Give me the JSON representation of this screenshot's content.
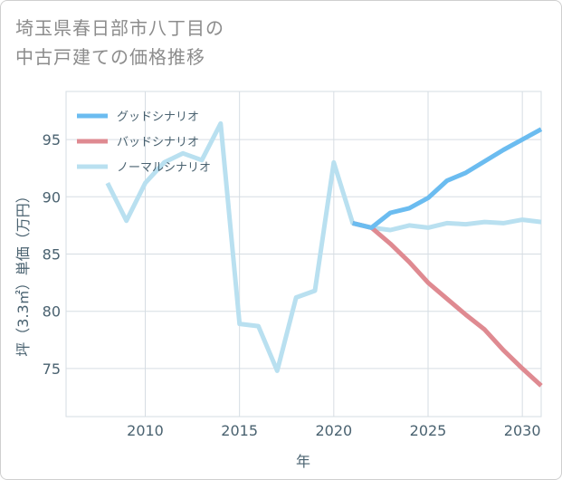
{
  "title_line1": "埼玉県春日部市八丁目の",
  "title_line2": "中古戸建ての価格推移",
  "chart_data": {
    "type": "line",
    "xlabel": "年",
    "ylabel": "坪（3.3㎡）単価（万円）",
    "xlim": [
      2005.8,
      2031
    ],
    "ylim": [
      70.8,
      99.2
    ],
    "xticks": [
      2010,
      2015,
      2020,
      2025,
      2030
    ],
    "yticks": [
      75,
      80,
      85,
      90,
      95
    ],
    "grid": true,
    "legend_position": "top-left",
    "series": [
      {
        "name": "グッドシナリオ",
        "color": "#6bbcf0",
        "x": [
          2021,
          2022,
          2023,
          2024,
          2025,
          2026,
          2027,
          2028,
          2029,
          2030,
          2031
        ],
        "values": [
          87.7,
          87.3,
          88.6,
          89.0,
          89.9,
          91.4,
          92.1,
          93.1,
          94.1,
          95.0,
          95.9
        ]
      },
      {
        "name": "バッドシナリオ",
        "color": "#df8a91",
        "x": [
          2021,
          2022,
          2023,
          2024,
          2025,
          2026,
          2027,
          2028,
          2029,
          2030,
          2031
        ],
        "values": [
          87.7,
          87.3,
          85.9,
          84.3,
          82.5,
          81.1,
          79.7,
          78.4,
          76.6,
          75.0,
          73.5
        ]
      },
      {
        "name": "ノーマルシナリオ",
        "color": "#b9e0f0",
        "x": [
          2008,
          2009,
          2010,
          2011,
          2012,
          2013,
          2014,
          2015,
          2016,
          2017,
          2018,
          2019,
          2020,
          2021,
          2022,
          2023,
          2024,
          2025,
          2026,
          2027,
          2028,
          2029,
          2030,
          2031
        ],
        "values": [
          91.2,
          87.9,
          91.2,
          93.0,
          93.8,
          93.2,
          96.4,
          78.9,
          78.7,
          74.8,
          81.2,
          81.8,
          93.0,
          87.7,
          87.3,
          87.1,
          87.5,
          87.3,
          87.7,
          87.6,
          87.8,
          87.7,
          88.0,
          87.8
        ]
      }
    ]
  }
}
